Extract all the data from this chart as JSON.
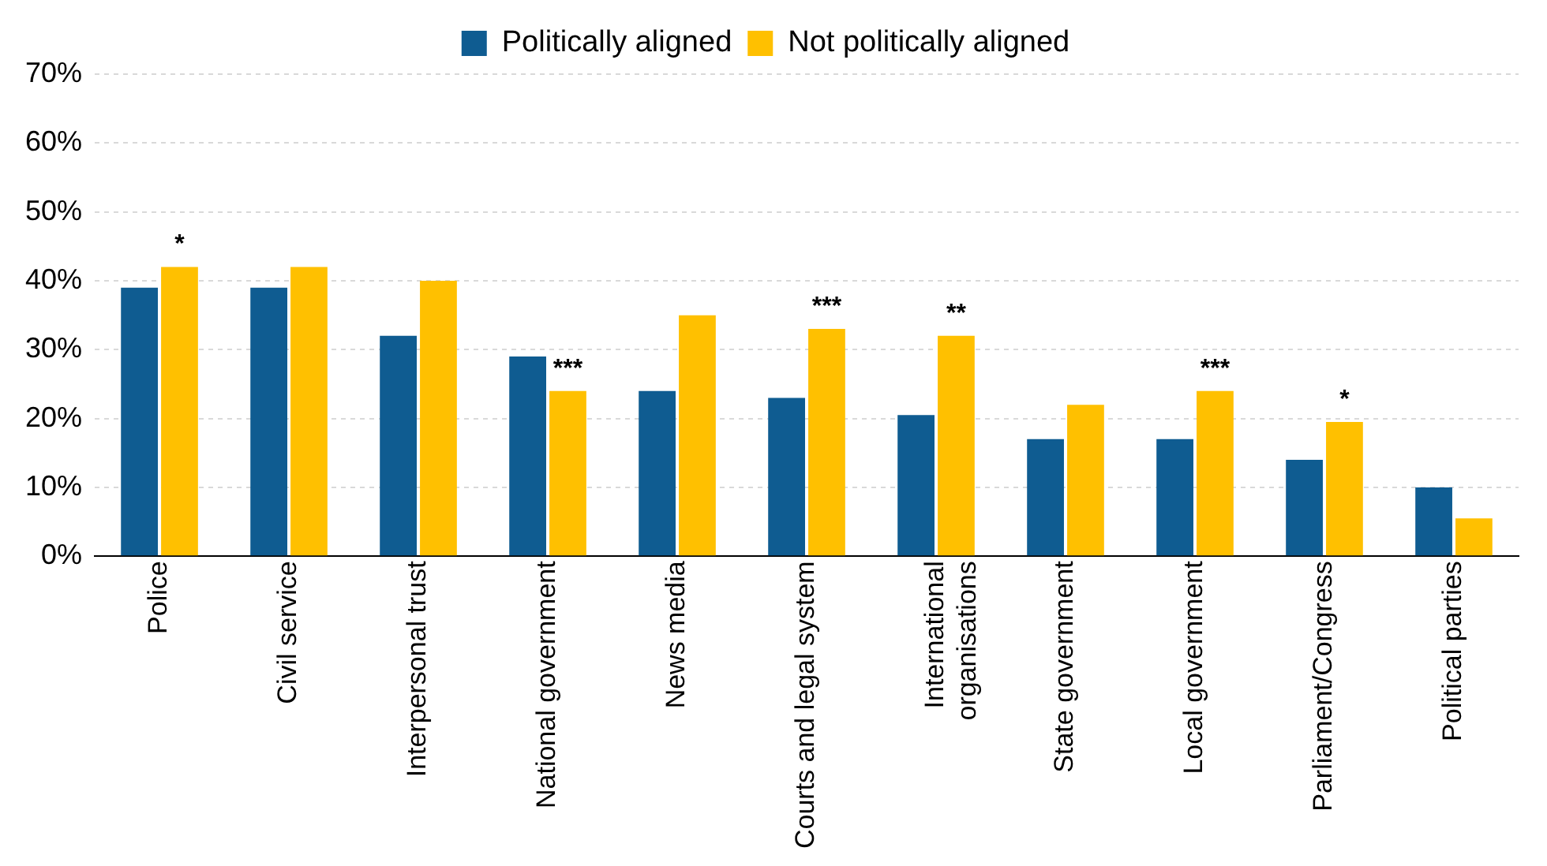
{
  "chart_data": {
    "type": "bar",
    "categories": [
      "Police",
      "Civil service",
      "Interpersonal trust",
      "National government",
      "News media",
      "Courts and legal system",
      "International organisations",
      "State government",
      "Local government",
      "Parliament/Congress",
      "Political parties"
    ],
    "series": [
      {
        "name": "Politically aligned",
        "color": "#0f5c91",
        "values": [
          39,
          39,
          32,
          29,
          24,
          23,
          20.5,
          17,
          17,
          14,
          10
        ]
      },
      {
        "name": "Not politically aligned",
        "color": "#ffc000",
        "values": [
          42,
          42,
          40,
          24,
          35,
          33,
          32,
          22,
          24,
          19.5,
          5.5
        ]
      }
    ],
    "ylim": [
      0,
      70
    ],
    "yticks": [
      {
        "value": 0,
        "label": "0%"
      },
      {
        "value": 10,
        "label": "10%"
      },
      {
        "value": 20,
        "label": "20%"
      },
      {
        "value": 30,
        "label": "30%"
      },
      {
        "value": 40,
        "label": "40%"
      },
      {
        "value": 50,
        "label": "50%"
      },
      {
        "value": 60,
        "label": "60%"
      },
      {
        "value": 70,
        "label": "70%"
      }
    ],
    "annotations": [
      {
        "text": "*",
        "x": "Police",
        "y": 42
      },
      {
        "text": "***",
        "x": "National government",
        "y": 24
      },
      {
        "text": "***",
        "x": "Courts and legal system",
        "y": 33
      },
      {
        "text": "**",
        "x": "International organisations",
        "y": 32
      },
      {
        "text": "***",
        "x": "Local government",
        "y": 24
      },
      {
        "text": "*",
        "x": "Parliament/Congress",
        "y": 19.5
      }
    ],
    "grid": "y",
    "legend": "top"
  }
}
